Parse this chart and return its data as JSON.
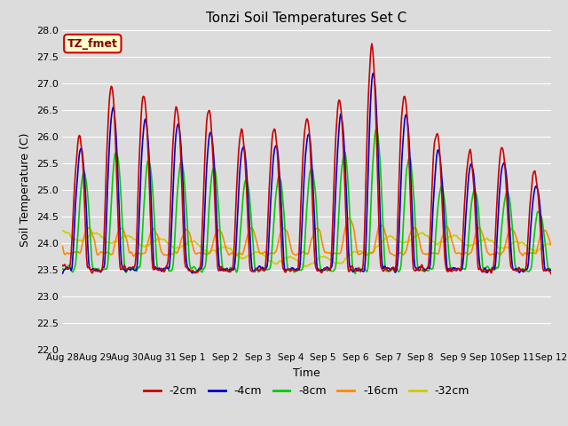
{
  "title": "Tonzi Soil Temperatures Set C",
  "xlabel": "Time",
  "ylabel": "Soil Temperature (C)",
  "ylim": [
    22.0,
    28.0
  ],
  "yticks": [
    22.0,
    22.5,
    23.0,
    23.5,
    24.0,
    24.5,
    25.0,
    25.5,
    26.0,
    26.5,
    27.0,
    27.5,
    28.0
  ],
  "bg_color": "#dcdcdc",
  "grid_color": "#ffffff",
  "annotation_text": "TZ_fmet",
  "annotation_bg": "#ffffcc",
  "annotation_border": "#cc0000",
  "series": {
    "-2cm": {
      "color": "#cc0000",
      "lw": 1.2
    },
    "-4cm": {
      "color": "#0000cc",
      "lw": 1.2
    },
    "-8cm": {
      "color": "#00cc00",
      "lw": 1.2
    },
    "-16cm": {
      "color": "#ff8800",
      "lw": 1.2
    },
    "-32cm": {
      "color": "#cccc00",
      "lw": 1.2
    }
  },
  "xtick_labels": [
    "Aug 28",
    "Aug 29",
    "Aug 30",
    "Aug 31",
    "Sep 1",
    "Sep 2",
    "Sep 3",
    "Sep 4",
    "Sep 5",
    "Sep 6",
    "Sep 7",
    "Sep 8",
    "Sep 9",
    "Sep 10",
    "Sep 11",
    "Sep 12"
  ],
  "n_points": 672
}
